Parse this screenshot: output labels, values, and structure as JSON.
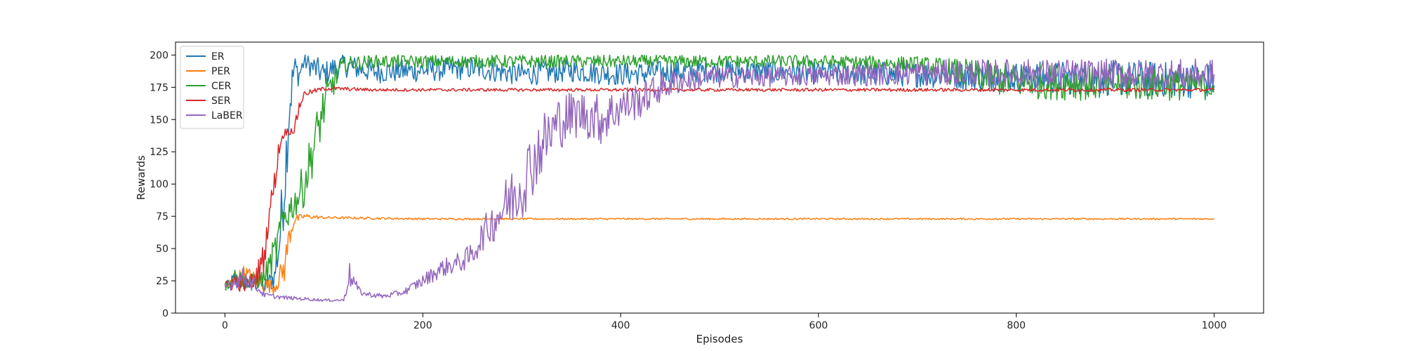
{
  "chart_data": {
    "type": "line",
    "title": "",
    "xlabel": "Episodes",
    "ylabel": "Rewards",
    "xlim": [
      -50,
      1050
    ],
    "ylim": [
      0,
      210
    ],
    "xticks": [
      0,
      200,
      400,
      600,
      800,
      1000
    ],
    "yticks": [
      0,
      25,
      50,
      75,
      100,
      125,
      150,
      175,
      200
    ],
    "grid": false,
    "legend_position": "top-left",
    "series": [
      {
        "name": "ER",
        "color": "#1f77b4",
        "x": [
          0,
          10,
          20,
          30,
          40,
          50,
          55,
          60,
          65,
          70,
          75,
          80,
          90,
          100,
          110,
          120,
          150,
          200,
          250,
          300,
          350,
          400,
          450,
          500,
          600,
          700,
          800,
          900,
          1000
        ],
        "y": [
          20,
          26,
          22,
          25,
          20,
          28,
          55,
          100,
          160,
          190,
          185,
          195,
          190,
          185,
          190,
          192,
          187,
          188,
          190,
          185,
          188,
          185,
          187,
          188,
          186,
          185,
          183,
          182,
          180
        ],
        "noise": [
          2,
          8,
          6,
          8,
          6,
          10,
          22,
          30,
          25,
          12,
          10,
          6,
          10,
          10,
          9,
          9,
          9,
          9,
          9,
          9,
          9,
          9,
          9,
          9,
          9,
          10,
          12,
          14,
          14
        ],
        "cap": 200
      },
      {
        "name": "PER",
        "color": "#ff7f0e",
        "x": [
          0,
          10,
          20,
          30,
          40,
          50,
          60,
          65,
          70,
          80,
          100,
          200,
          400,
          600,
          800,
          1000
        ],
        "y": [
          20,
          25,
          30,
          25,
          22,
          20,
          35,
          60,
          72,
          75,
          74,
          73,
          73,
          73,
          73,
          73
        ],
        "noise": [
          3,
          6,
          8,
          8,
          6,
          5,
          12,
          10,
          4,
          2,
          1,
          0.7,
          0.6,
          0.6,
          0.6,
          0.6
        ],
        "cap": 210
      },
      {
        "name": "CER",
        "color": "#2ca02c",
        "x": [
          0,
          10,
          20,
          30,
          40,
          50,
          60,
          70,
          80,
          90,
          100,
          110,
          120,
          150,
          300,
          500,
          600,
          700,
          750,
          800,
          900,
          1000
        ],
        "y": [
          20,
          28,
          25,
          24,
          28,
          45,
          75,
          85,
          100,
          130,
          160,
          180,
          193,
          195,
          195,
          195,
          195,
          193,
          185,
          180,
          178,
          177
        ],
        "noise": [
          3,
          8,
          6,
          6,
          8,
          15,
          15,
          12,
          18,
          20,
          18,
          12,
          6,
          5,
          5,
          5,
          5,
          6,
          12,
          14,
          14,
          12
        ],
        "cap": 200
      },
      {
        "name": "SER",
        "color": "#d62728",
        "x": [
          0,
          10,
          20,
          30,
          40,
          45,
          50,
          55,
          60,
          70,
          75,
          80,
          90,
          100,
          110,
          150,
          300,
          500,
          700,
          800,
          900,
          1000
        ],
        "y": [
          20,
          25,
          22,
          25,
          45,
          80,
          100,
          130,
          140,
          142,
          160,
          170,
          172,
          174,
          174,
          173,
          173,
          173,
          173,
          173,
          173,
          173
        ],
        "noise": [
          4,
          8,
          6,
          8,
          12,
          8,
          10,
          8,
          3,
          3,
          6,
          2,
          2,
          1.5,
          1.5,
          1.2,
          1.2,
          1.2,
          1.3,
          1.3,
          1.3,
          1.3
        ],
        "cap": 210
      },
      {
        "name": "LaBER",
        "color": "#9467bd",
        "x": [
          0,
          10,
          20,
          30,
          40,
          60,
          100,
          120,
          125,
          130,
          135,
          140,
          160,
          180,
          200,
          220,
          240,
          250,
          260,
          280,
          300,
          320,
          340,
          360,
          380,
          400,
          420,
          440,
          460,
          480,
          500,
          550,
          600,
          650,
          700,
          800,
          900,
          1000
        ],
        "y": [
          20,
          25,
          28,
          22,
          14,
          12,
          10,
          10,
          30,
          25,
          18,
          15,
          13,
          16,
          25,
          35,
          40,
          45,
          60,
          80,
          100,
          130,
          150,
          155,
          150,
          160,
          165,
          175,
          180,
          182,
          183,
          183,
          184,
          185,
          186,
          186,
          185,
          185
        ],
        "noise": [
          4,
          6,
          8,
          6,
          2,
          1.5,
          1,
          1,
          12,
          5,
          3,
          2,
          2,
          2.5,
          5,
          7,
          8,
          10,
          12,
          20,
          28,
          25,
          22,
          18,
          20,
          16,
          14,
          12,
          10,
          9,
          9,
          8,
          8,
          9,
          10,
          11,
          12,
          12
        ],
        "cap": 200
      }
    ]
  }
}
